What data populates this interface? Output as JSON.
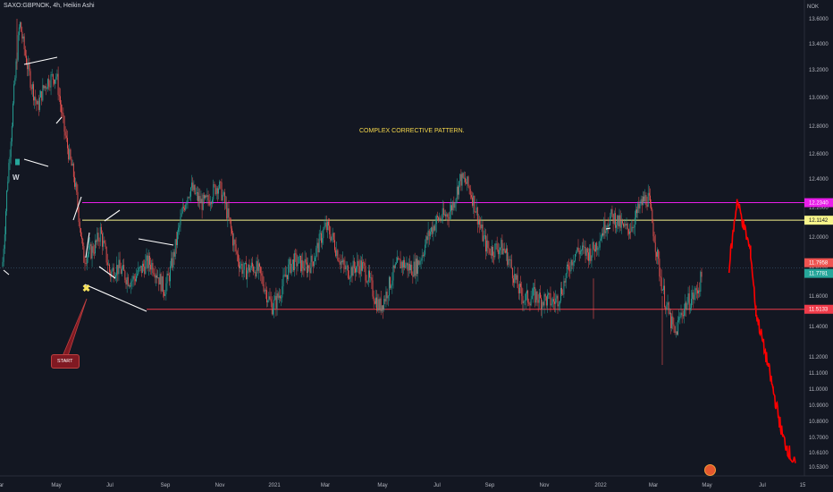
{
  "title": "SAXO:GBPNOK, 4h, Heikin Ashi",
  "currency": "NOK",
  "annotation_text": "COMPLEX CORRECTIVE PATTERN.",
  "start_label": "START",
  "wave_label": "W",
  "colors": {
    "background": "#131722",
    "up": "#26a69a",
    "down": "#ef5350",
    "projection": "#ff0000",
    "magenta": "#e91ee9",
    "yellow": "#f7f48b",
    "support": "#ef3b4a",
    "annotation": "#f7d94c"
  },
  "chart_data": {
    "type": "candlestick",
    "x_tick_labels": [
      "Mar",
      "May",
      "Jul",
      "Sep",
      "Nov",
      "2021",
      "Mar",
      "May",
      "Jul",
      "Sep",
      "Nov",
      "2022",
      "Mar",
      "May",
      "Jul",
      "15"
    ],
    "y_tick_labels": [
      "13.6000",
      "13.4000",
      "13.2000",
      "13.0000",
      "12.8000",
      "12.6000",
      "12.4000",
      "12.2000",
      "12.0000",
      "11.8000",
      "11.6000",
      "11.4000",
      "11.2000",
      "11.1000",
      "11.0000",
      "10.9000",
      "10.8000",
      "10.7000",
      "10.6100",
      "10.5300"
    ],
    "y_tick_values": [
      13.6,
      13.4,
      13.2,
      13.0,
      12.8,
      12.6,
      12.4,
      12.2,
      12.0,
      11.8,
      11.6,
      11.4,
      11.2,
      11.1,
      11.0,
      10.9,
      10.8,
      10.7,
      10.61,
      10.53
    ],
    "horizontal_levels": [
      {
        "label": "12.2340",
        "value": 12.234,
        "color": "#e91ee9"
      },
      {
        "label": "12.1142",
        "value": 12.1142,
        "color": "#f7f48b"
      },
      {
        "label": "11.5133",
        "value": 11.5133,
        "color": "#ef3b4a"
      }
    ],
    "price_labels": [
      {
        "label": "11.7958",
        "value": 11.7958,
        "color": "#ef5350"
      },
      {
        "label": "11.7781",
        "value": 11.7781,
        "color": "#26a69a"
      }
    ],
    "price_path_anchors": [
      {
        "t": "2020-03",
        "v": 11.8
      },
      {
        "t": "2020-03-20",
        "v": 13.6
      },
      {
        "t": "2020-04-10",
        "v": 12.9
      },
      {
        "t": "2020-05",
        "v": 13.2
      },
      {
        "t": "2020-05-20",
        "v": 12.4
      },
      {
        "t": "2020-06",
        "v": 11.8
      },
      {
        "t": "2020-06-20",
        "v": 12.1
      },
      {
        "t": "2020-07",
        "v": 11.7
      },
      {
        "t": "2020-08",
        "v": 11.8
      },
      {
        "t": "2020-09",
        "v": 11.7
      },
      {
        "t": "2020-10",
        "v": 12.3
      },
      {
        "t": "2020-11",
        "v": 12.3
      },
      {
        "t": "2020-12",
        "v": 11.8
      },
      {
        "t": "2021-01",
        "v": 11.6
      },
      {
        "t": "2021-03",
        "v": 12.0
      },
      {
        "t": "2021-05",
        "v": 11.6
      },
      {
        "t": "2021-07",
        "v": 12.0
      },
      {
        "t": "2021-08",
        "v": 12.4
      },
      {
        "t": "2021-09",
        "v": 12.0
      },
      {
        "t": "2021-11",
        "v": 11.5
      },
      {
        "t": "2022-01",
        "v": 12.0
      },
      {
        "t": "2022-03",
        "v": 12.2
      },
      {
        "t": "2022-04",
        "v": 11.3
      },
      {
        "t": "2022-05",
        "v": 11.8
      }
    ],
    "projection_path": [
      {
        "t": "2022-06",
        "v": 11.8
      },
      {
        "t": "2022-06-10",
        "v": 12.25
      },
      {
        "t": "2022-06-25",
        "v": 11.9
      },
      {
        "t": "2022-07",
        "v": 11.5
      },
      {
        "t": "2022-07-20",
        "v": 11.0
      },
      {
        "t": "2022-08",
        "v": 10.7
      },
      {
        "t": "2022-08-15",
        "v": 10.53
      }
    ]
  }
}
